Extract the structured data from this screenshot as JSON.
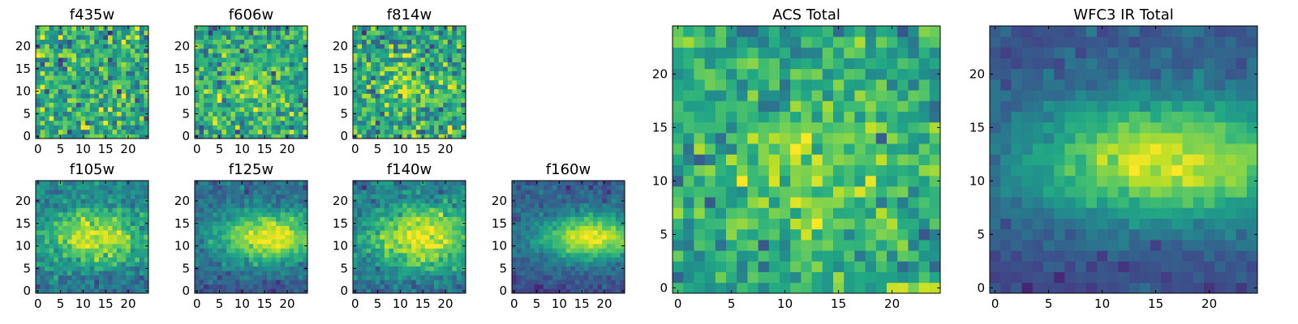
{
  "chart_data": [
    {
      "type": "heatmap",
      "title": "f435w",
      "grid_size": 25,
      "xticks": [
        "0",
        "5",
        "10",
        "15",
        "20"
      ],
      "yticks": [
        "0",
        "5",
        "10",
        "15",
        "20"
      ],
      "colormap": "viridis",
      "value_range": [
        0,
        1
      ],
      "grid": false,
      "description_values": "noisy field, mean ~0.62, no central concentration",
      "values_model": {
        "base": 0.62,
        "peak": 0.0,
        "center": [
          12,
          12
        ],
        "sigma": [
          6,
          4
        ],
        "noise": 0.17,
        "seed": 11
      }
    },
    {
      "type": "heatmap",
      "title": "f606w",
      "grid_size": 25,
      "xticks": [
        "0",
        "5",
        "10",
        "15",
        "20"
      ],
      "yticks": [
        "0",
        "5",
        "10",
        "15",
        "20"
      ],
      "colormap": "viridis",
      "value_range": [
        0,
        1
      ],
      "grid": false,
      "values_model": {
        "base": 0.6,
        "peak": 0.22,
        "center": [
          12,
          11
        ],
        "sigma": [
          4,
          3
        ],
        "noise": 0.15,
        "seed": 23
      }
    },
    {
      "type": "heatmap",
      "title": "f814w",
      "grid_size": 25,
      "xticks": [
        "0",
        "5",
        "10",
        "15",
        "20"
      ],
      "yticks": [
        "0",
        "5",
        "10",
        "15",
        "20"
      ],
      "colormap": "viridis",
      "value_range": [
        0,
        1
      ],
      "grid": false,
      "values_model": {
        "base": 0.6,
        "peak": 0.15,
        "center": [
          12,
          11
        ],
        "sigma": [
          5,
          4
        ],
        "noise": 0.17,
        "seed": 37
      }
    },
    {
      "type": "heatmap",
      "title": "f105w",
      "grid_size": 25,
      "xticks": [
        "0",
        "5",
        "10",
        "15",
        "20"
      ],
      "yticks": [
        "0",
        "5",
        "10",
        "15",
        "20"
      ],
      "colormap": "viridis",
      "value_range": [
        0,
        1
      ],
      "grid": false,
      "values_model": {
        "base": 0.45,
        "peak": 0.5,
        "center": [
          13,
          12
        ],
        "sigma": [
          7,
          4
        ],
        "noise": 0.09,
        "seed": 41
      }
    },
    {
      "type": "heatmap",
      "title": "f125w",
      "grid_size": 25,
      "xticks": [
        "0",
        "5",
        "10",
        "15",
        "20"
      ],
      "yticks": [
        "0",
        "5",
        "10",
        "15",
        "20"
      ],
      "colormap": "viridis",
      "value_range": [
        0,
        1
      ],
      "grid": false,
      "values_model": {
        "base": 0.35,
        "peak": 0.62,
        "center": [
          16,
          12
        ],
        "sigma": [
          8,
          4
        ],
        "noise": 0.07,
        "seed": 53
      }
    },
    {
      "type": "heatmap",
      "title": "f140w",
      "grid_size": 25,
      "xticks": [
        "0",
        "5",
        "10",
        "15",
        "20"
      ],
      "yticks": [
        "0",
        "5",
        "10",
        "15",
        "20"
      ],
      "colormap": "viridis",
      "value_range": [
        0,
        1
      ],
      "grid": false,
      "values_model": {
        "base": 0.4,
        "peak": 0.55,
        "center": [
          15,
          12
        ],
        "sigma": [
          8,
          5
        ],
        "noise": 0.08,
        "seed": 67
      }
    },
    {
      "type": "heatmap",
      "title": "f160w",
      "grid_size": 25,
      "xticks": [
        "0",
        "5",
        "10",
        "15",
        "20"
      ],
      "yticks": [
        "0",
        "5",
        "10",
        "15",
        "20"
      ],
      "colormap": "viridis",
      "value_range": [
        0,
        1
      ],
      "grid": false,
      "values_model": {
        "base": 0.3,
        "peak": 0.68,
        "center": [
          17,
          12
        ],
        "sigma": [
          8,
          3.5
        ],
        "noise": 0.06,
        "seed": 71
      }
    },
    {
      "type": "heatmap",
      "title": "ACS Total",
      "grid_size": 25,
      "xticks": [
        "0",
        "5",
        "10",
        "15",
        "20"
      ],
      "yticks": [
        "0",
        "5",
        "10",
        "15",
        "20"
      ],
      "colormap": "viridis",
      "value_range": [
        0,
        1
      ],
      "grid": false,
      "values_model": {
        "base": 0.6,
        "peak": 0.22,
        "center": [
          12,
          11
        ],
        "sigma": [
          5,
          4
        ],
        "noise": 0.13,
        "seed": 83
      }
    },
    {
      "type": "heatmap",
      "title": "WFC3 IR Total",
      "grid_size": 25,
      "xticks": [
        "0",
        "5",
        "10",
        "15",
        "20"
      ],
      "yticks": [
        "0",
        "5",
        "10",
        "15",
        "20"
      ],
      "colormap": "viridis",
      "value_range": [
        0,
        1
      ],
      "grid": false,
      "values_model": {
        "base": 0.28,
        "peak": 0.66,
        "center": [
          16,
          12
        ],
        "sigma": [
          9,
          4
        ],
        "noise": 0.05,
        "seed": 97
      }
    }
  ]
}
